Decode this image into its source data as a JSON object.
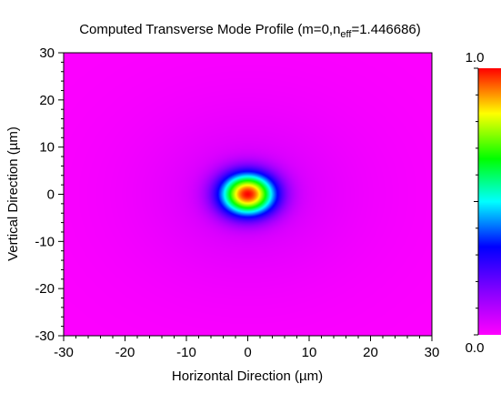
{
  "chart_data": {
    "type": "heatmap",
    "title": "Computed Transverse Mode Profile (m=0,n",
    "title_subscript": "eff",
    "title_suffix": "=1.446686)",
    "xlabel": "Horizontal Direction (µm)",
    "ylabel": "Vertical Direction (µm)",
    "xlim": [
      -30,
      30
    ],
    "ylim": [
      -30,
      30
    ],
    "x_ticks": [
      "-30",
      "-20",
      "-10",
      "0",
      "10",
      "20",
      "30"
    ],
    "y_ticks": [
      "30",
      "20",
      "10",
      "0",
      "-10",
      "-20",
      "-30"
    ],
    "x_tick_values": [
      -30,
      -20,
      -10,
      0,
      10,
      20,
      30
    ],
    "y_tick_values": [
      30,
      20,
      10,
      0,
      -10,
      -20,
      -30
    ],
    "colorbar": {
      "min": 0.0,
      "max": 1.0,
      "max_label": "1.0",
      "min_label": "0.0",
      "colors": [
        "#ff00ff",
        "#8800ff",
        "#0000ff",
        "#00ffff",
        "#00ff00",
        "#ffff00",
        "#ff0000"
      ]
    },
    "mode_profile": {
      "center": [
        0,
        0
      ],
      "peak_value": 1.0,
      "core_radius_um": 5.0,
      "cladding_decay_um": 12.0
    },
    "grid": false
  }
}
